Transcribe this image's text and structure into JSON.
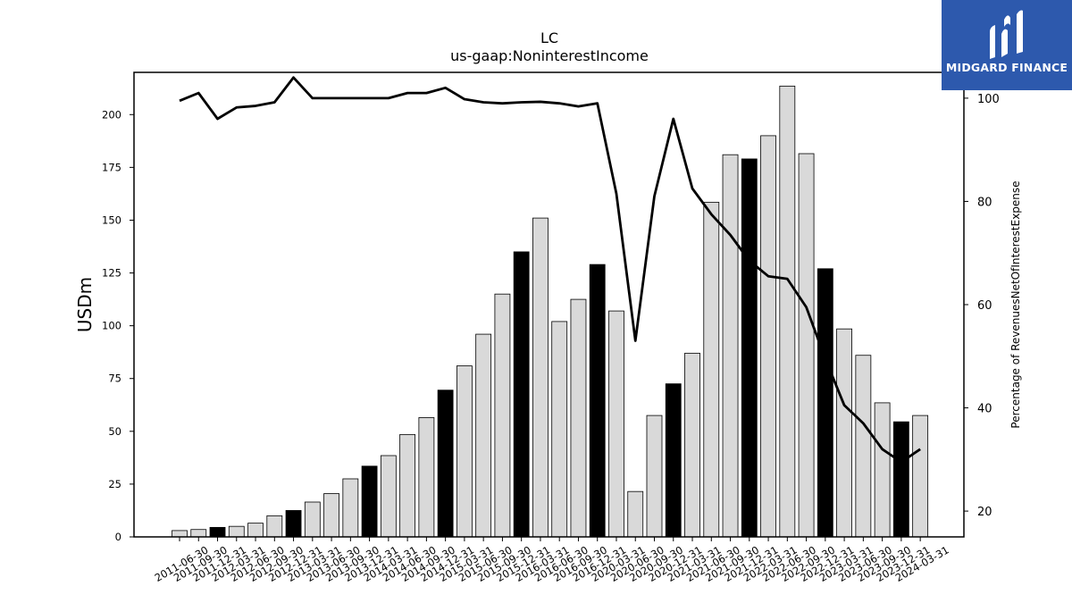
{
  "chart_data": {
    "type": "bar",
    "title": "LC",
    "subtitle": "us-gaap:NoninterestIncome",
    "ylabel": "USDm",
    "y2label": "Percentage of RevenuesNetOfInterestExpense",
    "ylim": [
      0,
      220
    ],
    "y2lim": [
      15,
      105
    ],
    "yticks": [
      "0",
      "25",
      "50",
      "75",
      "100",
      "125",
      "150",
      "175",
      "200"
    ],
    "y2ticks": [
      "20",
      "40",
      "60",
      "80",
      "100"
    ],
    "categories": [
      "2011-06-30",
      "2011-09-30",
      "2011-12-31",
      "2012-03-31",
      "2012-06-30",
      "2012-09-30",
      "2012-12-31",
      "2013-03-31",
      "2013-06-30",
      "2013-09-30",
      "2013-12-31",
      "2014-03-31",
      "2014-06-30",
      "2014-09-30",
      "2014-12-31",
      "2015-03-31",
      "2015-06-30",
      "2015-09-30",
      "2015-12-31",
      "2016-03-31",
      "2016-06-30",
      "2016-09-30",
      "2016-12-31",
      "2020-03-31",
      "2020-06-30",
      "2020-09-30",
      "2020-12-31",
      "2021-03-31",
      "2021-06-30",
      "2021-09-30",
      "2021-12-31",
      "2022-03-31",
      "2022-06-30",
      "2022-09-30",
      "2022-12-31",
      "2023-03-31",
      "2023-06-30",
      "2023-09-30",
      "2023-12-31",
      "2024-03-31"
    ],
    "series": [
      {
        "type": "bar",
        "values": [
          3,
          3.5,
          4.5,
          5,
          6.5,
          10,
          12.5,
          16.5,
          20.5,
          27.5,
          33.5,
          38.5,
          48.5,
          56.5,
          69.5,
          81,
          96,
          115,
          135,
          151,
          102,
          112.5,
          129,
          107,
          21.5,
          57.5,
          72.5,
          87,
          158.5,
          181,
          179,
          190,
          213.5,
          181.5,
          127,
          98.5,
          86,
          63.5,
          54.5,
          57.5
        ],
        "highlight": [
          false,
          false,
          true,
          false,
          false,
          false,
          true,
          false,
          false,
          false,
          true,
          false,
          false,
          false,
          true,
          false,
          false,
          false,
          true,
          false,
          false,
          false,
          true,
          false,
          false,
          false,
          true,
          false,
          false,
          false,
          true,
          false,
          false,
          false,
          true,
          false,
          false,
          false,
          true,
          false
        ],
        "color": "#d9d9d9",
        "highlight_color": "#000000"
      },
      {
        "type": "line",
        "axis": "right",
        "values": [
          99.5,
          101,
          96,
          98.2,
          98.5,
          99.2,
          104,
          100,
          100,
          100,
          100,
          100,
          101,
          101,
          102,
          99.8,
          99.2,
          99,
          99.2,
          99.3,
          99,
          98.4,
          99,
          81.5,
          53,
          81,
          96,
          82.5,
          77.5,
          73.5,
          68.5,
          65.5,
          65,
          59.5,
          49.5,
          40.5,
          37,
          32,
          29.5,
          32
        ],
        "color": "#000000"
      }
    ],
    "grid": false
  },
  "logo": {
    "text": "MIDGARD FINANCE",
    "bg_color": "#2d59ad"
  }
}
